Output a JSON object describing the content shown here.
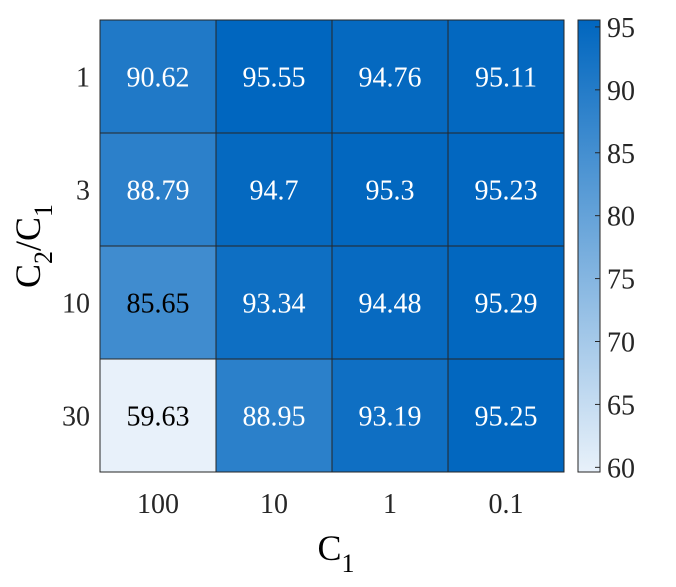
{
  "chart_data": {
    "type": "heatmap",
    "xlabel": {
      "main": "C",
      "sub": "1"
    },
    "ylabel": {
      "main1": "C",
      "sub1": "2",
      "slash": "/",
      "main2": "C",
      "sub2": "1"
    },
    "x_categories": [
      "100",
      "10",
      "1",
      "0.1"
    ],
    "y_categories": [
      "1",
      "3",
      "10",
      "30"
    ],
    "values": [
      [
        "90.62",
        "95.55",
        "94.76",
        "95.11"
      ],
      [
        "88.79",
        "94.7",
        "95.3",
        "95.23"
      ],
      [
        "85.65",
        "93.34",
        "94.48",
        "95.29"
      ],
      [
        "59.63",
        "88.95",
        "93.19",
        "95.25"
      ]
    ],
    "colorbar": {
      "ticks": [
        "60",
        "65",
        "70",
        "75",
        "80",
        "85",
        "90",
        "95"
      ],
      "range": [
        59.63,
        95.55
      ],
      "color_low": "#e8f1fa",
      "color_high": "#0066bf"
    },
    "grid": true
  }
}
